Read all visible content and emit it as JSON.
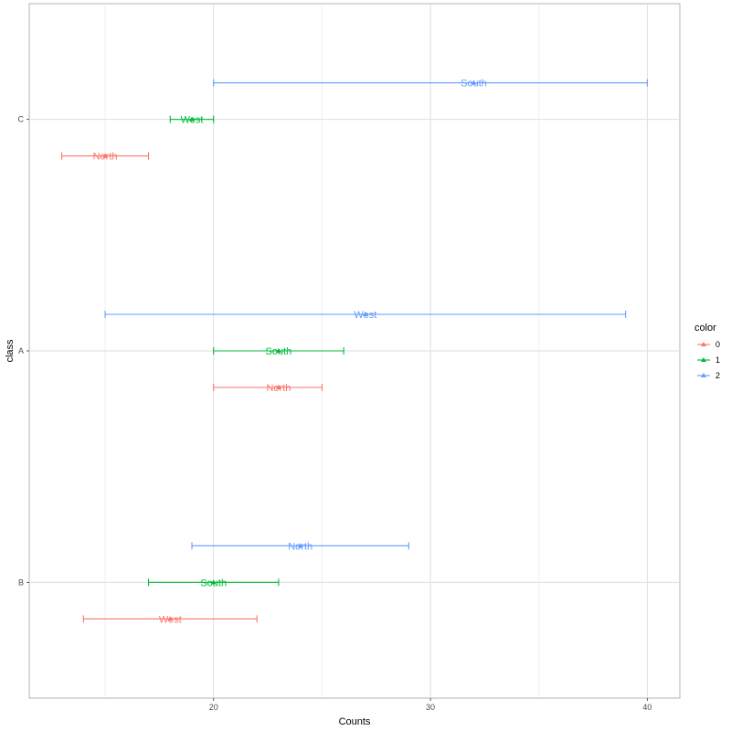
{
  "chart_data": {
    "type": "errorbar",
    "xlabel": "Counts",
    "ylabel": "class",
    "xlim": [
      11.5,
      41.5
    ],
    "xticks": [
      20,
      30,
      40
    ],
    "categories": [
      "B",
      "A",
      "C"
    ],
    "grid": true,
    "legend": {
      "title": "color",
      "position": "right",
      "entries": [
        {
          "label": "0",
          "color": "#F8766D"
        },
        {
          "label": "1",
          "color": "#00BA38"
        },
        {
          "label": "2",
          "color": "#619CFF"
        }
      ]
    },
    "series": [
      {
        "name": "0",
        "color": "#F8766D",
        "points": [
          {
            "class": "C",
            "xmin": 13,
            "xmax": 17,
            "x": 15,
            "label": "North"
          },
          {
            "class": "A",
            "xmin": 20,
            "xmax": 25,
            "x": 23,
            "label": "North"
          },
          {
            "class": "B",
            "xmin": 14,
            "xmax": 22,
            "x": 18,
            "label": "West"
          }
        ]
      },
      {
        "name": "1",
        "color": "#00BA38",
        "points": [
          {
            "class": "C",
            "xmin": 18,
            "xmax": 20,
            "x": 19,
            "label": "West"
          },
          {
            "class": "A",
            "xmin": 20,
            "xmax": 26,
            "x": 23,
            "label": "South"
          },
          {
            "class": "B",
            "xmin": 17,
            "xmax": 23,
            "x": 20,
            "label": "South"
          }
        ]
      },
      {
        "name": "2",
        "color": "#619CFF",
        "points": [
          {
            "class": "C",
            "xmin": 20,
            "xmax": 40,
            "x": 32,
            "label": "South"
          },
          {
            "class": "A",
            "xmin": 15,
            "xmax": 39,
            "x": 27,
            "label": "West"
          },
          {
            "class": "B",
            "xmin": 19,
            "xmax": 29,
            "x": 24,
            "label": "North"
          }
        ]
      }
    ]
  }
}
